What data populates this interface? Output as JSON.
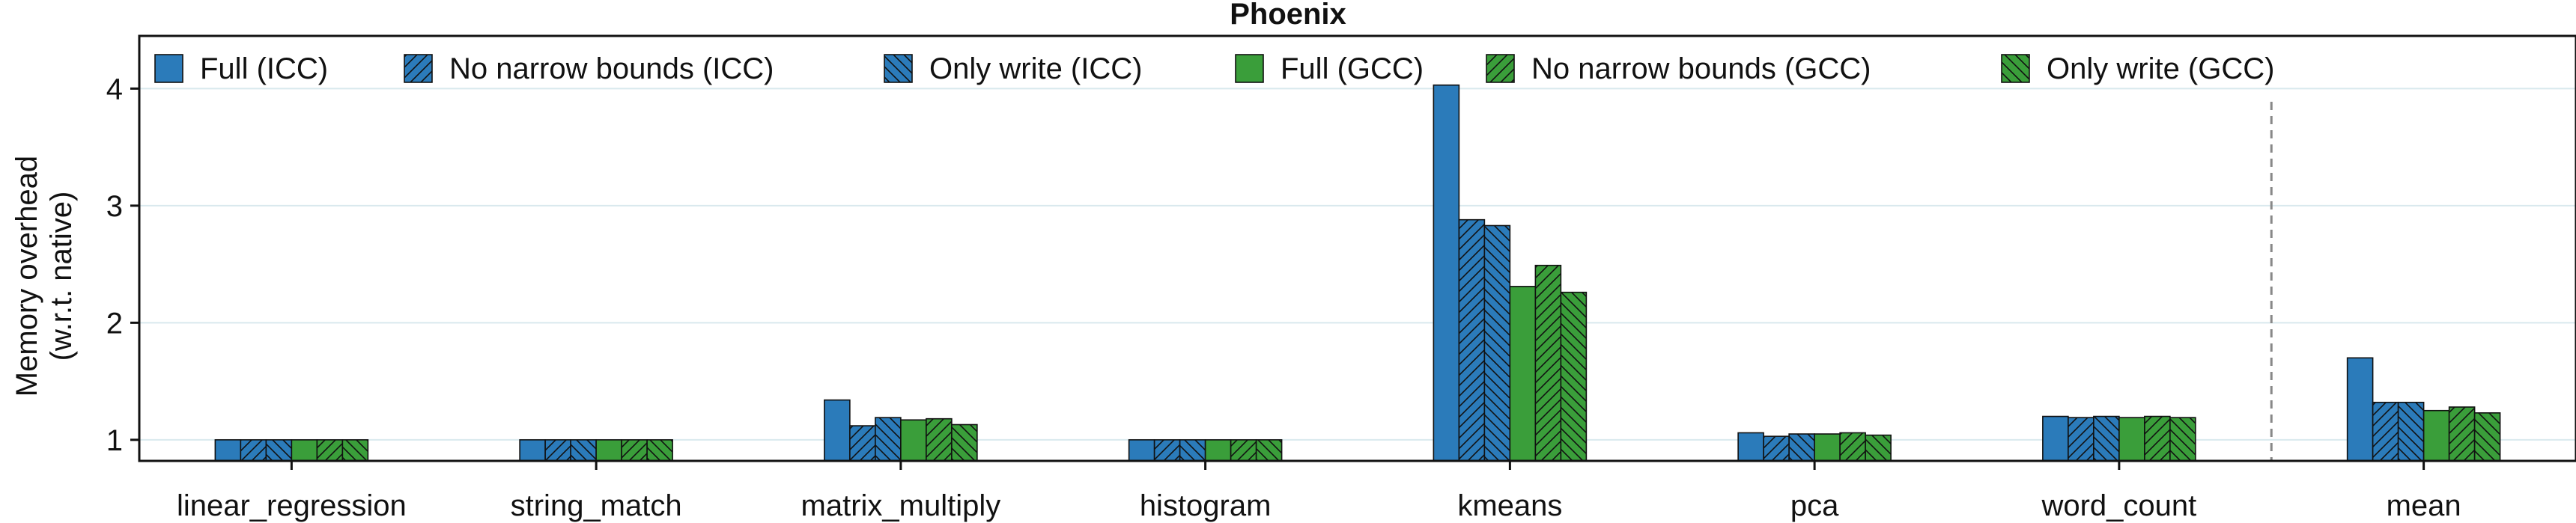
{
  "chart_data": {
    "type": "bar",
    "title": "Phoenix",
    "xlabel": "",
    "ylabel": [
      "Memory overhead",
      "(w.r.t. native)"
    ],
    "ylim": [
      0.82,
      4.45
    ],
    "yticks": [
      1,
      2,
      3,
      4
    ],
    "ytick_labels": [
      "1",
      "2",
      "3",
      "4"
    ],
    "grid": "horizontal",
    "legend_position": "top",
    "separator_before": "mean",
    "categories": [
      "linear_regression",
      "string_match",
      "matrix_multiply",
      "histogram",
      "kmeans",
      "pca",
      "word_count",
      "mean"
    ],
    "series": [
      {
        "name": "Full (ICC)",
        "color": "#2b7bba",
        "pattern": "solid",
        "values": [
          1.0,
          1.0,
          1.34,
          1.0,
          4.03,
          1.06,
          1.2,
          1.7
        ]
      },
      {
        "name": "No narrow bounds (ICC)",
        "color": "#2b7bba",
        "pattern": "diagonal",
        "values": [
          1.0,
          1.0,
          1.12,
          1.0,
          2.88,
          1.03,
          1.19,
          1.32
        ]
      },
      {
        "name": "Only write (ICC)",
        "color": "#2b7bba",
        "pattern": "backdiagonal",
        "values": [
          1.0,
          1.0,
          1.19,
          1.0,
          2.83,
          1.05,
          1.2,
          1.32
        ]
      },
      {
        "name": "Full (GCC)",
        "color": "#3a9e3a",
        "pattern": "solid",
        "values": [
          1.0,
          1.0,
          1.17,
          1.0,
          2.31,
          1.05,
          1.19,
          1.25
        ]
      },
      {
        "name": "No narrow bounds (GCC)",
        "color": "#3a9e3a",
        "pattern": "diagonal",
        "values": [
          1.0,
          1.0,
          1.18,
          1.0,
          2.49,
          1.06,
          1.2,
          1.28
        ]
      },
      {
        "name": "Only write (GCC)",
        "color": "#3a9e3a",
        "pattern": "backdiagonal",
        "values": [
          1.0,
          1.0,
          1.13,
          1.0,
          2.26,
          1.04,
          1.19,
          1.23
        ]
      }
    ]
  }
}
